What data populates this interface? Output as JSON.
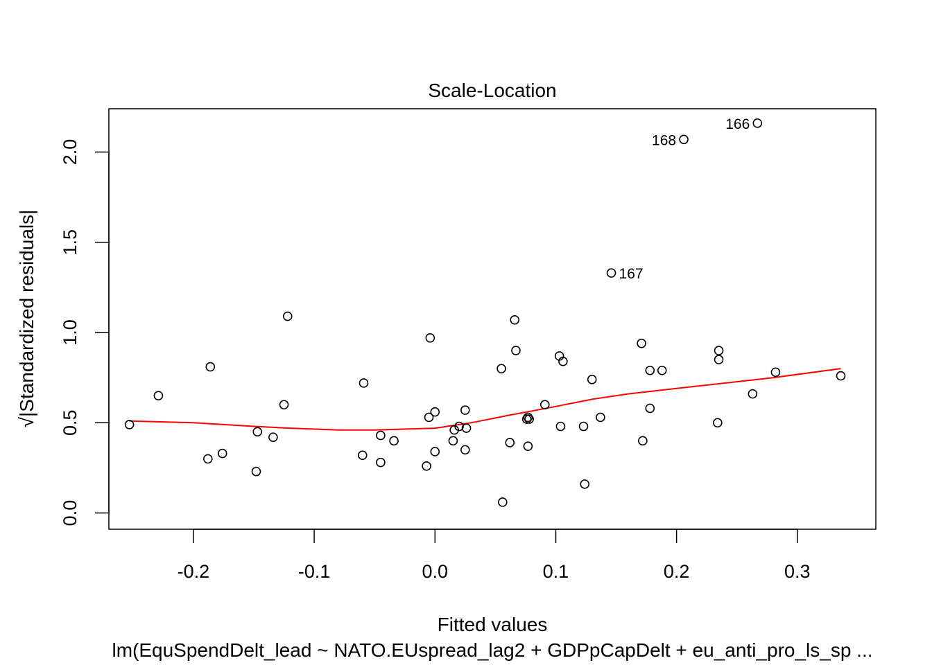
{
  "chart_data": {
    "type": "scatter",
    "title": "Scale-Location",
    "xlabel": "Fitted values",
    "ylabel": "√|Standardized residuals|",
    "ylabel_prefix": "√",
    "ylabel_text": "|Standardized residuals|",
    "subtitle": "lm(EquSpendDelt_lead ~ NATO.EUspread_lag2 + GDPpCapDelt + eu_anti_pro_ls_sp ...",
    "xlim": [
      -0.27,
      0.365
    ],
    "ylim": [
      -0.09,
      2.24
    ],
    "xticks": [
      -0.2,
      -0.1,
      0.0,
      0.1,
      0.2,
      0.3
    ],
    "xtick_labels": [
      "-0.2",
      "-0.1",
      "0.0",
      "0.1",
      "0.2",
      "0.3"
    ],
    "yticks": [
      0.0,
      0.5,
      1.0,
      1.5,
      2.0
    ],
    "ytick_labels": [
      "0.0",
      "0.5",
      "1.0",
      "1.5",
      "2.0"
    ],
    "grid": false,
    "colors": {
      "points": "#000000",
      "smoother": "#ff0000"
    },
    "points": [
      {
        "x": -0.253,
        "y": 0.49
      },
      {
        "x": -0.229,
        "y": 0.65
      },
      {
        "x": -0.186,
        "y": 0.81
      },
      {
        "x": -0.188,
        "y": 0.3
      },
      {
        "x": -0.176,
        "y": 0.33
      },
      {
        "x": -0.147,
        "y": 0.45
      },
      {
        "x": -0.148,
        "y": 0.23
      },
      {
        "x": -0.134,
        "y": 0.42
      },
      {
        "x": -0.125,
        "y": 0.6
      },
      {
        "x": -0.122,
        "y": 1.09
      },
      {
        "x": -0.059,
        "y": 0.72
      },
      {
        "x": -0.06,
        "y": 0.32
      },
      {
        "x": -0.045,
        "y": 0.43
      },
      {
        "x": -0.045,
        "y": 0.28
      },
      {
        "x": -0.034,
        "y": 0.4
      },
      {
        "x": -0.007,
        "y": 0.26
      },
      {
        "x": -0.005,
        "y": 0.53
      },
      {
        "x": -0.004,
        "y": 0.97
      },
      {
        "x": 0.0,
        "y": 0.56
      },
      {
        "x": 0.0,
        "y": 0.34
      },
      {
        "x": 0.015,
        "y": 0.4
      },
      {
        "x": 0.016,
        "y": 0.46
      },
      {
        "x": 0.02,
        "y": 0.48
      },
      {
        "x": 0.025,
        "y": 0.57
      },
      {
        "x": 0.026,
        "y": 0.47
      },
      {
        "x": 0.025,
        "y": 0.35
      },
      {
        "x": 0.055,
        "y": 0.8
      },
      {
        "x": 0.056,
        "y": 0.06
      },
      {
        "x": 0.062,
        "y": 0.39
      },
      {
        "x": 0.066,
        "y": 1.07
      },
      {
        "x": 0.067,
        "y": 0.9
      },
      {
        "x": 0.076,
        "y": 0.52
      },
      {
        "x": 0.077,
        "y": 0.53
      },
      {
        "x": 0.078,
        "y": 0.52
      },
      {
        "x": 0.077,
        "y": 0.37
      },
      {
        "x": 0.091,
        "y": 0.6
      },
      {
        "x": 0.103,
        "y": 0.87
      },
      {
        "x": 0.106,
        "y": 0.84
      },
      {
        "x": 0.104,
        "y": 0.48
      },
      {
        "x": 0.123,
        "y": 0.48
      },
      {
        "x": 0.124,
        "y": 0.16
      },
      {
        "x": 0.13,
        "y": 0.74
      },
      {
        "x": 0.137,
        "y": 0.53
      },
      {
        "x": 0.146,
        "y": 1.33,
        "label": "167"
      },
      {
        "x": 0.171,
        "y": 0.94
      },
      {
        "x": 0.172,
        "y": 0.4
      },
      {
        "x": 0.178,
        "y": 0.79
      },
      {
        "x": 0.178,
        "y": 0.58
      },
      {
        "x": 0.188,
        "y": 0.79
      },
      {
        "x": 0.206,
        "y": 2.07,
        "label": "168"
      },
      {
        "x": 0.234,
        "y": 0.5
      },
      {
        "x": 0.235,
        "y": 0.9
      },
      {
        "x": 0.235,
        "y": 0.85
      },
      {
        "x": 0.263,
        "y": 0.66
      },
      {
        "x": 0.267,
        "y": 2.16,
        "label": "166"
      },
      {
        "x": 0.282,
        "y": 0.78
      },
      {
        "x": 0.336,
        "y": 0.76
      }
    ],
    "smoother": {
      "x": [
        -0.253,
        -0.2,
        -0.15,
        -0.12,
        -0.08,
        -0.05,
        0.0,
        0.03,
        0.06,
        0.1,
        0.13,
        0.16,
        0.2,
        0.24,
        0.28,
        0.336
      ],
      "y": [
        0.51,
        0.5,
        0.48,
        0.47,
        0.46,
        0.46,
        0.47,
        0.5,
        0.54,
        0.59,
        0.63,
        0.66,
        0.69,
        0.72,
        0.75,
        0.8
      ]
    }
  }
}
